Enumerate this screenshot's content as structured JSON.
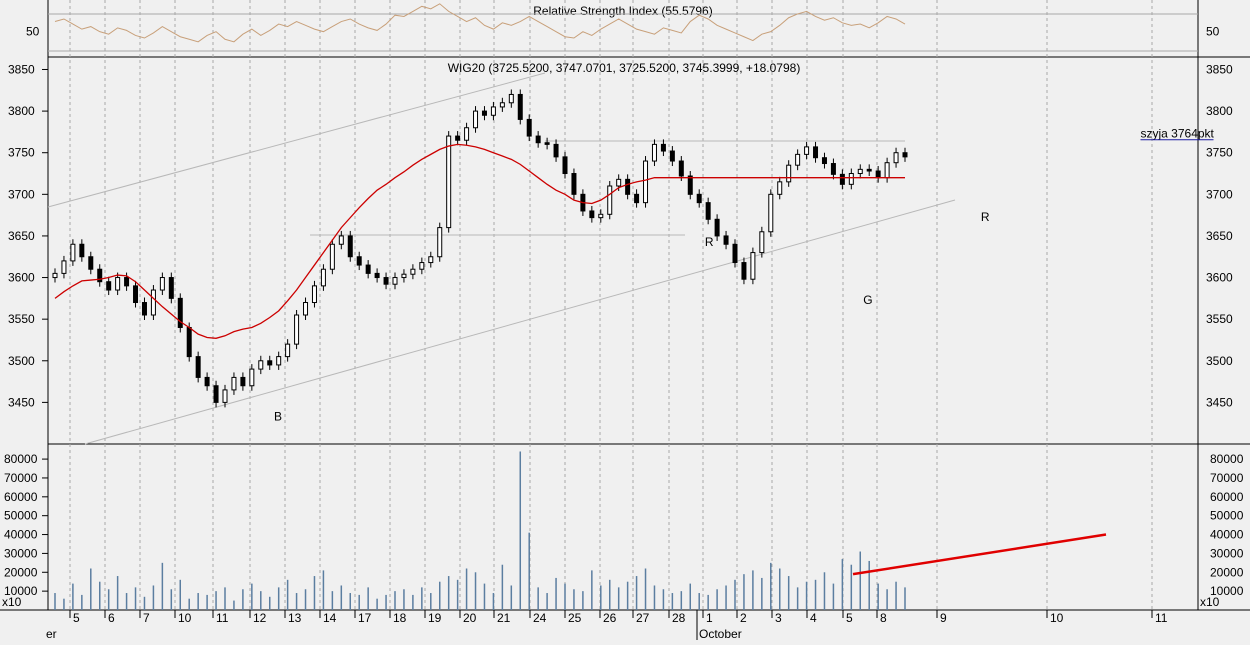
{
  "colors": {
    "background": "#f0f0f0",
    "grid": "#a8a8a8",
    "candle_up": "#ffffff",
    "candle_down": "#000000",
    "sma": "#cc0000",
    "rsi": "#c8a07a",
    "volume": "#5b7ea0",
    "trendline": "#b8b8b8",
    "label_blue": "#1a1aa0",
    "volume_trend": "#e00000"
  },
  "chart_data": [
    {
      "type": "line",
      "title": "Relative Strength Index (55.5796)",
      "yticks": [
        50
      ],
      "ylim": [
        30,
        75
      ],
      "series": [
        {
          "values": [
            58,
            60,
            56,
            52,
            54,
            50,
            48,
            53,
            51,
            47,
            45,
            49,
            54,
            50,
            46,
            44,
            42,
            47,
            50,
            44,
            42,
            48,
            52,
            47,
            51,
            56,
            54,
            58,
            55,
            52,
            50,
            54,
            58,
            60,
            56,
            53,
            51,
            56,
            63,
            62,
            66,
            70,
            68,
            72,
            66,
            62,
            58,
            61,
            55,
            52,
            57,
            55,
            58,
            62,
            58,
            54,
            50,
            46,
            45,
            50,
            47,
            52,
            56,
            60,
            56,
            52,
            50,
            48,
            53,
            51,
            49,
            58,
            63,
            60,
            55,
            52,
            49,
            46,
            43,
            48,
            50,
            55,
            61,
            64,
            66,
            62,
            59,
            61,
            57,
            55,
            56,
            53,
            57,
            62,
            60,
            56
          ]
        }
      ]
    },
    {
      "type": "candlestick",
      "title": "WIG20 (3725.5200, 3747.0701, 3725.5200, 3745.3999, +18.0798)",
      "yticks": [
        3450,
        3500,
        3550,
        3600,
        3650,
        3700,
        3750,
        3800,
        3850
      ],
      "ylim": [
        3400,
        3865
      ],
      "annotations": [
        {
          "text": "B",
          "price": 3428,
          "at": 0.2
        },
        {
          "text": "R",
          "price": 3638,
          "at": 0.575
        },
        {
          "text": "G",
          "price": 3568,
          "at": 0.713
        },
        {
          "text": "R",
          "price": 3668,
          "at": 0.815
        },
        {
          "text": "szyja 3764pkt",
          "price": 3768,
          "at": 0.95
        }
      ],
      "neckline": 3764,
      "price": [
        3605,
        3620,
        3640,
        3625,
        3610,
        3595,
        3585,
        3600,
        3590,
        3570,
        3555,
        3585,
        3600,
        3575,
        3540,
        3505,
        3480,
        3470,
        3450,
        3465,
        3480,
        3470,
        3490,
        3500,
        3495,
        3505,
        3520,
        3555,
        3570,
        3590,
        3610,
        3640,
        3650,
        3625,
        3615,
        3605,
        3600,
        3592,
        3600,
        3604,
        3610,
        3618,
        3625,
        3660,
        3770,
        3765,
        3780,
        3800,
        3795,
        3805,
        3810,
        3820,
        3790,
        3770,
        3762,
        3760,
        3745,
        3725,
        3700,
        3680,
        3672,
        3676,
        3710,
        3718,
        3700,
        3690,
        3740,
        3760,
        3752,
        3740,
        3722,
        3700,
        3690,
        3670,
        3650,
        3640,
        3618,
        3598,
        3630,
        3655,
        3700,
        3715,
        3735,
        3748,
        3757,
        3744,
        3737,
        3724,
        3712,
        3725,
        3730,
        3728,
        3720,
        3738,
        3750,
        3745
      ],
      "sma": [
        3575,
        3583,
        3590,
        3596,
        3597,
        3598,
        3600,
        3603,
        3602,
        3595,
        3585,
        3575,
        3565,
        3556,
        3547,
        3540,
        3532,
        3528,
        3527,
        3530,
        3535,
        3538,
        3540,
        3545,
        3552,
        3560,
        3572,
        3585,
        3600,
        3615,
        3630,
        3645,
        3660,
        3672,
        3684,
        3695,
        3705,
        3712,
        3720,
        3727,
        3735,
        3742,
        3748,
        3754,
        3758,
        3760,
        3759,
        3757,
        3754,
        3750,
        3746,
        3742,
        3736,
        3728,
        3720,
        3712,
        3705,
        3700,
        3693,
        3690,
        3689,
        3693,
        3700,
        3708,
        3712,
        3715,
        3717,
        3720,
        3720,
        3720,
        3720,
        3720,
        3720,
        3720,
        3720,
        3720,
        3720,
        3720,
        3720,
        3720,
        3720,
        3720,
        3720,
        3720,
        3720,
        3720,
        3720,
        3720,
        3720,
        3720,
        3720,
        3720,
        3720,
        3720,
        3720,
        3720
      ]
    },
    {
      "type": "bar",
      "title": "",
      "yunit": "x10",
      "yticks": [
        10000,
        20000,
        30000,
        40000,
        50000,
        60000,
        70000,
        80000
      ],
      "ylim": [
        0,
        88000
      ],
      "values": [
        9000,
        6000,
        14000,
        8000,
        22000,
        15000,
        11000,
        18000,
        9000,
        12000,
        7000,
        13000,
        25000,
        11000,
        16000,
        6000,
        9000,
        8000,
        10000,
        12000,
        5000,
        11000,
        14000,
        10000,
        7000,
        12000,
        16000,
        9000,
        11000,
        18000,
        21000,
        10000,
        13000,
        9000,
        8000,
        12000,
        6000,
        8000,
        10000,
        11000,
        8000,
        12000,
        9000,
        15000,
        18000,
        16000,
        22000,
        20000,
        14000,
        9000,
        24000,
        13000,
        84000,
        41000,
        12000,
        9000,
        17000,
        14000,
        11000,
        10000,
        21000,
        13000,
        16000,
        12000,
        15000,
        18000,
        22000,
        13000,
        11000,
        9000,
        10000,
        14000,
        9000,
        8000,
        11000,
        13000,
        16000,
        19000,
        21000,
        17000,
        25000,
        22000,
        18000,
        12000,
        15000,
        16000,
        20000,
        14000,
        27000,
        24000,
        31000,
        26000,
        14000,
        11000,
        15000,
        12000
      ],
      "trend_from": [
        0.7,
        19000
      ],
      "trend_to": [
        0.92,
        40000
      ]
    }
  ],
  "x_axis": {
    "ticks": [
      "5",
      "6",
      "7",
      "10",
      "11",
      "12",
      "13",
      "14",
      "17",
      "18",
      "19",
      "20",
      "21",
      "24",
      "25",
      "26",
      "27",
      "28",
      "1",
      "2",
      "3",
      "4",
      "5",
      "8",
      "9",
      "10",
      "11"
    ],
    "month_labels": [
      "er",
      "October"
    ]
  }
}
